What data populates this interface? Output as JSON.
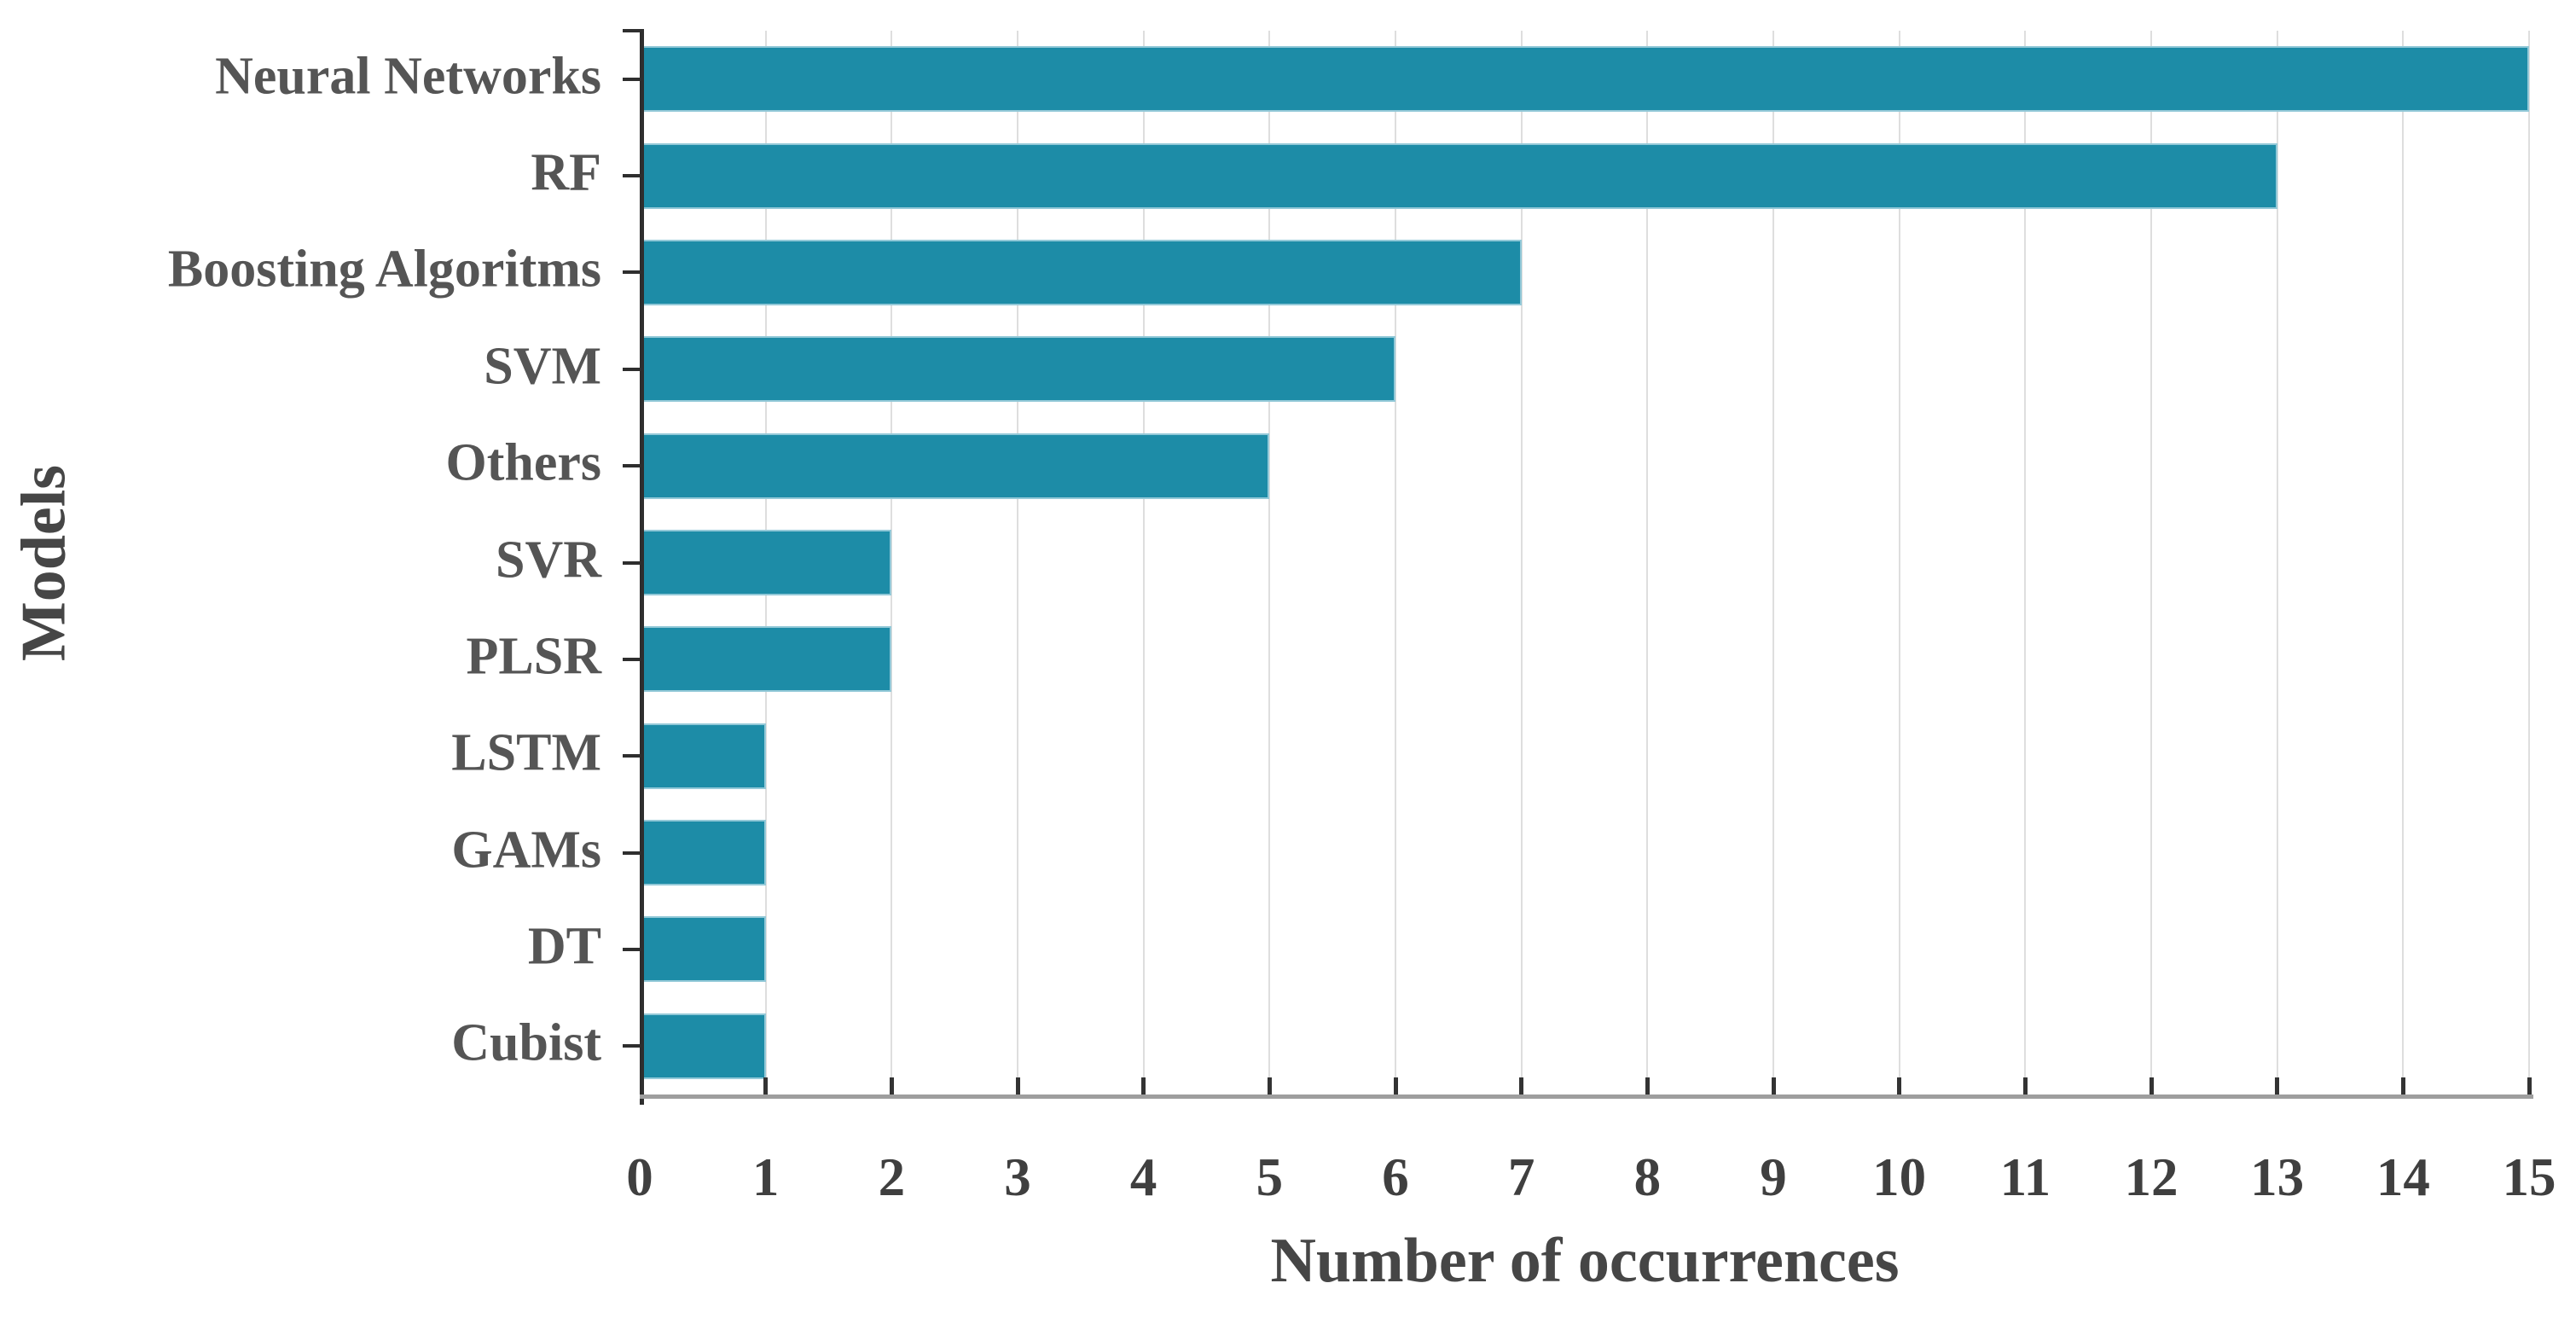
{
  "chart_data": {
    "type": "bar",
    "orientation": "horizontal",
    "title": "",
    "xlabel": "Number of occurrences",
    "ylabel": "Models",
    "categories": [
      "Neural Networks",
      "RF",
      "Boosting Algoritms",
      "SVM",
      "Others",
      "SVR",
      "PLSR",
      "LSTM",
      "GAMs",
      "DT",
      "Cubist"
    ],
    "values": [
      15,
      13,
      7,
      6,
      5,
      2,
      2,
      1,
      1,
      1,
      1
    ],
    "xlim": [
      0,
      15
    ],
    "x_ticks": [
      0,
      1,
      2,
      3,
      4,
      5,
      6,
      7,
      8,
      9,
      10,
      11,
      12,
      13,
      14,
      15
    ],
    "grid": true,
    "legend": false,
    "bar_color": "#1d8ca7",
    "bar_edge_color": "#a8d4e0",
    "grid_color": "#dedede",
    "axis_color": "#2e2e2e",
    "x_axis_line_color": "#9e9e9e",
    "label_color": "#555555",
    "tick_label_color": "#3f3f3f",
    "title_color": "#464646"
  }
}
